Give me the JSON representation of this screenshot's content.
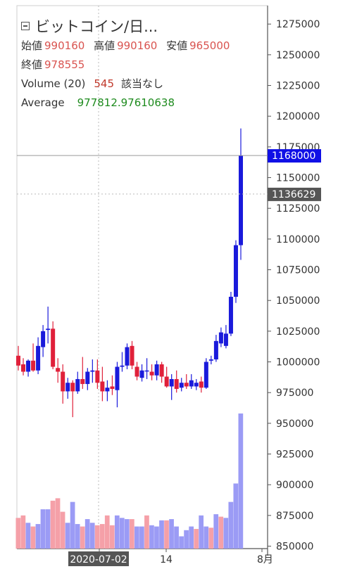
{
  "legend": {
    "title": "ビットコイン/日...",
    "open_label": "始値",
    "open_value": "990160",
    "high_label": "高値",
    "high_value": "990160",
    "low_label": "安値",
    "low_value": "965000",
    "close_label": "終値",
    "close_value": "978555",
    "volume_label": "Volume (20)",
    "volume_value": "545",
    "volume_note": "該当なし",
    "average_label": "Average",
    "average_value": "977812.97610638"
  },
  "colors": {
    "up": "#1a1adb",
    "down": "#e0203a",
    "vol_up": "#9b9bf5",
    "vol_down": "#f5a0a8",
    "last_tag": "#1010e6",
    "cross_tag": "#555555"
  },
  "chart_data": {
    "type": "candlestick",
    "title": "ビットコイン/日",
    "price_axis": {
      "ticks": [
        1275000,
        1250000,
        1225000,
        1200000,
        1175000,
        1150000,
        1125000,
        1100000,
        1075000,
        1050000,
        1025000,
        1000000,
        975000,
        950000,
        925000,
        900000,
        875000,
        850000
      ],
      "range": [
        848000,
        1290000
      ]
    },
    "x_labels": [
      "2020-07-02",
      "14",
      "8月"
    ],
    "last_price": 1168000,
    "crosshair_price": 1136629,
    "candles": [
      {
        "o": 1005000,
        "h": 1013000,
        "l": 993000,
        "c": 997000,
        "v": "dn",
        "vh": 873000
      },
      {
        "o": 998000,
        "h": 1003000,
        "l": 989000,
        "c": 992000,
        "v": "dn",
        "vh": 875000
      },
      {
        "o": 992000,
        "h": 1002000,
        "l": 988000,
        "c": 1001000,
        "v": "up",
        "vh": 869000
      },
      {
        "o": 1001000,
        "h": 1015000,
        "l": 992000,
        "c": 993000,
        "v": "dn",
        "vh": 866000
      },
      {
        "o": 993000,
        "h": 1020000,
        "l": 990000,
        "c": 1013000,
        "v": "up",
        "vh": 868000
      },
      {
        "o": 1012000,
        "h": 1030000,
        "l": 1004000,
        "c": 1025000,
        "v": "up",
        "vh": 880000
      },
      {
        "o": 1026000,
        "h": 1045000,
        "l": 1015000,
        "c": 1027000,
        "v": "up",
        "vh": 880000
      },
      {
        "o": 1027000,
        "h": 1033000,
        "l": 994000,
        "c": 996000,
        "v": "dn",
        "vh": 887000
      },
      {
        "o": 995000,
        "h": 1003000,
        "l": 983000,
        "c": 992000,
        "v": "dn",
        "vh": 889000
      },
      {
        "o": 992000,
        "h": 998000,
        "l": 966000,
        "c": 976000,
        "v": "dn",
        "vh": 878000
      },
      {
        "o": 976000,
        "h": 987000,
        "l": 970000,
        "c": 983000,
        "v": "up",
        "vh": 869000
      },
      {
        "o": 983000,
        "h": 985000,
        "l": 955000,
        "c": 976000,
        "v": "up",
        "vh": 886000
      },
      {
        "o": 976000,
        "h": 992000,
        "l": 974000,
        "c": 986000,
        "v": "up",
        "vh": 868000
      },
      {
        "o": 986000,
        "h": 1004000,
        "l": 978000,
        "c": 982000,
        "v": "dn",
        "vh": 866000
      },
      {
        "o": 982000,
        "h": 995000,
        "l": 977000,
        "c": 992000,
        "v": "up",
        "vh": 872000
      },
      {
        "o": 992000,
        "h": 1002000,
        "l": 983000,
        "c": 993000,
        "v": "up",
        "vh": 869000
      },
      {
        "o": 993000,
        "h": 1002000,
        "l": 978000,
        "c": 983000,
        "v": "dn",
        "vh": 867000
      },
      {
        "o": 984000,
        "h": 996000,
        "l": 968000,
        "c": 976000,
        "v": "dn",
        "vh": 868000
      },
      {
        "o": 976000,
        "h": 985000,
        "l": 968000,
        "c": 979000,
        "v": "dn",
        "vh": 875000
      },
      {
        "o": 980000,
        "h": 989000,
        "l": 973000,
        "c": 978000,
        "v": "dn",
        "vh": 867000
      },
      {
        "o": 977000,
        "h": 1000000,
        "l": 963000,
        "c": 996000,
        "v": "up",
        "vh": 875000
      },
      {
        "o": 996000,
        "h": 1008000,
        "l": 992000,
        "c": 997000,
        "v": "up",
        "vh": 873000
      },
      {
        "o": 997000,
        "h": 1015000,
        "l": 994000,
        "c": 1012000,
        "v": "up",
        "vh": 872000
      },
      {
        "o": 1013000,
        "h": 1017000,
        "l": 994000,
        "c": 997000,
        "v": "dn",
        "vh": 872000
      },
      {
        "o": 996000,
        "h": 1000000,
        "l": 985000,
        "c": 988000,
        "v": "up",
        "vh": 866000
      },
      {
        "o": 987000,
        "h": 998000,
        "l": 984000,
        "c": 993000,
        "v": "up",
        "vh": 866000
      },
      {
        "o": 993000,
        "h": 1003000,
        "l": 986000,
        "c": 993000,
        "v": "dn",
        "vh": 875000
      },
      {
        "o": 992000,
        "h": 998000,
        "l": 985000,
        "c": 989000,
        "v": "up",
        "vh": 867000
      },
      {
        "o": 989000,
        "h": 1001000,
        "l": 985000,
        "c": 998000,
        "v": "up",
        "vh": 866000
      },
      {
        "o": 998000,
        "h": 1000000,
        "l": 983000,
        "c": 988000,
        "v": "up",
        "vh": 871000
      },
      {
        "o": 988000,
        "h": 996000,
        "l": 979000,
        "c": 980000,
        "v": "dn",
        "vh": 871000
      },
      {
        "o": 980000,
        "h": 990000,
        "l": 969000,
        "c": 986000,
        "v": "up",
        "vh": 872000
      },
      {
        "o": 986000,
        "h": 993000,
        "l": 975000,
        "c": 978000,
        "v": "up",
        "vh": 866000
      },
      {
        "o": 979000,
        "h": 987000,
        "l": 976000,
        "c": 983000,
        "v": "up",
        "vh": 858000
      },
      {
        "o": 983000,
        "h": 990000,
        "l": 978000,
        "c": 980000,
        "v": "up",
        "vh": 863000
      },
      {
        "o": 980000,
        "h": 990000,
        "l": 978000,
        "c": 985000,
        "v": "up",
        "vh": 866000
      },
      {
        "o": 980000,
        "h": 986000,
        "l": 977000,
        "c": 983000,
        "v": "dn",
        "vh": 864000
      },
      {
        "o": 984000,
        "h": 988000,
        "l": 975000,
        "c": 979000,
        "v": "up",
        "vh": 875000
      },
      {
        "o": 979000,
        "h": 1003000,
        "l": 978000,
        "c": 1000000,
        "v": "up",
        "vh": 866000
      },
      {
        "o": 1001000,
        "h": 1005000,
        "l": 998000,
        "c": 1002000,
        "v": "dn",
        "vh": 865000
      },
      {
        "o": 1002000,
        "h": 1022000,
        "l": 1000000,
        "c": 1017000,
        "v": "up",
        "vh": 876000
      },
      {
        "o": 1015000,
        "h": 1028000,
        "l": 1012000,
        "c": 1024000,
        "v": "dn",
        "vh": 874000
      },
      {
        "o": 1013000,
        "h": 1030000,
        "l": 1011000,
        "c": 1023000,
        "v": "up",
        "vh": 873000
      },
      {
        "o": 1023000,
        "h": 1057000,
        "l": 1021000,
        "c": 1053000,
        "v": "up",
        "vh": 886000
      },
      {
        "o": 1053000,
        "h": 1099000,
        "l": 1048000,
        "c": 1095000,
        "v": "up",
        "vh": 901000
      },
      {
        "o": 1095000,
        "h": 1190000,
        "l": 1083000,
        "c": 1168000,
        "v": "up",
        "vh": 958000
      }
    ]
  }
}
